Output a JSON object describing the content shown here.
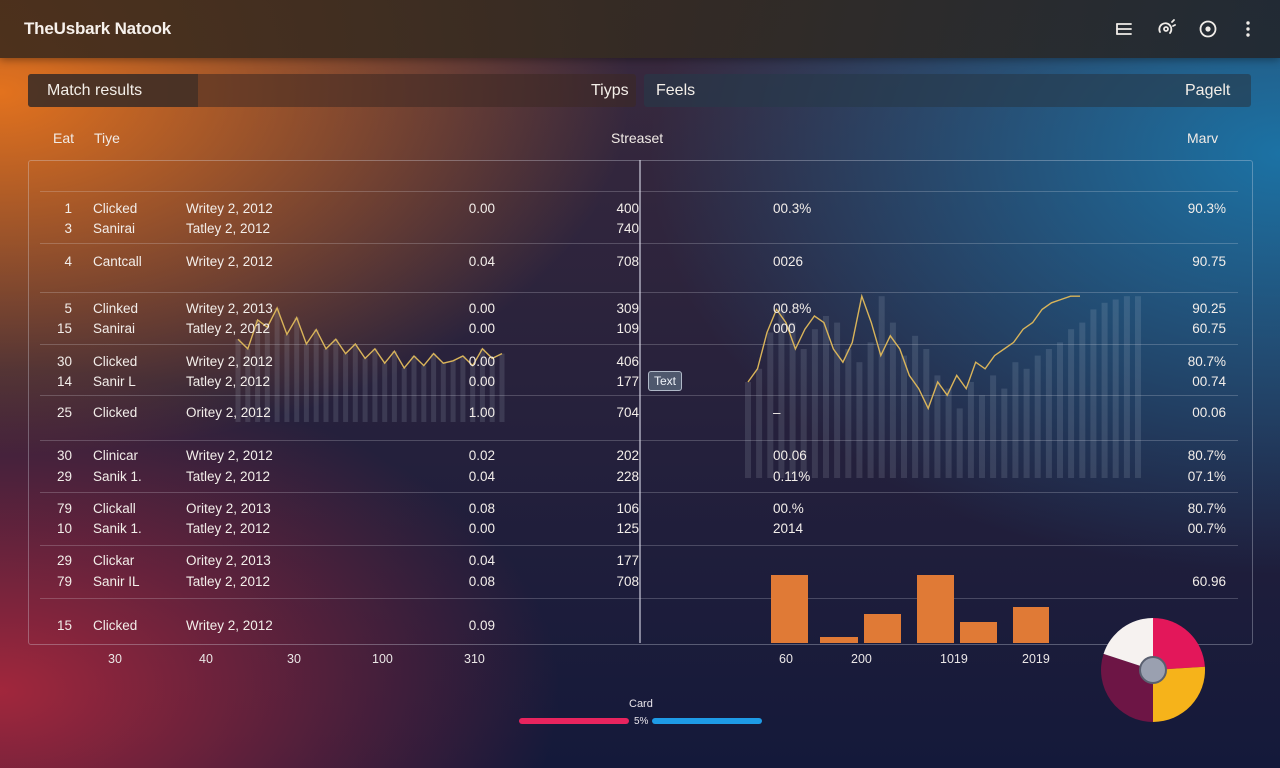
{
  "app": {
    "title": "TheUsbark Natook"
  },
  "toolbar_icons": [
    "list-icon",
    "settings-icon",
    "target-icon",
    "more-vertical-icon"
  ],
  "panel_left": {
    "tab_active": "Match results",
    "tab_right": "Tiyps"
  },
  "panel_right": {
    "tab_left": "Feels",
    "tab_right": "Pagelt"
  },
  "columns": {
    "id": "Eat",
    "type": "Tiye",
    "stream": "Streaset",
    "max": "Marv"
  },
  "rows": [
    {
      "id": "1",
      "type": "Clicked",
      "date": "Writey 2, 2012",
      "val": "0.00",
      "count": "400",
      "pct": "00.3%",
      "max": "90.3%"
    },
    {
      "id": "3",
      "type": "Sanirai",
      "date": "Tatley 2, 2012",
      "val": "",
      "count": "740",
      "pct": "",
      "max": ""
    },
    {
      "id": "4",
      "type": "Cantcall",
      "date": "Writey 2, 2012",
      "val": "0.04",
      "count": "708",
      "pct": "0026",
      "max": "90.75"
    },
    {
      "id": "5",
      "type": "Clinked",
      "date": "Writey 2, 2013",
      "val": "0.00",
      "count": "309",
      "pct": "00.8%",
      "max": "90.25"
    },
    {
      "id": "15",
      "type": "Sanirai",
      "date": "Tatley 2, 2012",
      "val": "0.00",
      "count": "109",
      "pct": "000",
      "max": "60.75"
    },
    {
      "id": "30",
      "type": "Clicked",
      "date": "Writey 2, 2012",
      "val": "0.00",
      "count": "406",
      "pct": "",
      "max": "80.7%"
    },
    {
      "id": "14",
      "type": "Sanir L",
      "date": "Tatley 2, 2012",
      "val": "0.00",
      "count": "177",
      "pct": "",
      "max": "00.74"
    },
    {
      "id": "25",
      "type": "Clicked",
      "date": "Oritey 2, 2012",
      "val": "1.00",
      "count": "704",
      "pct": "–",
      "max": "00.06"
    },
    {
      "id": "30",
      "type": "Clinicar",
      "date": "Writey 2, 2012",
      "val": "0.02",
      "count": "202",
      "pct": "00.06",
      "max": "80.7%"
    },
    {
      "id": "29",
      "type": "Sanik 1.",
      "date": "Tatley 2, 2012",
      "val": "0.04",
      "count": "228",
      "pct": "0.11%",
      "max": "07.1%"
    },
    {
      "id": "79",
      "type": "Clickall",
      "date": "Oritey 2, 2013",
      "val": "0.08",
      "count": "106",
      "pct": "00.%",
      "max": "80.7%"
    },
    {
      "id": "10",
      "type": "Sanik 1.",
      "date": "Tatley 2, 2012",
      "val": "0.00",
      "count": "125",
      "pct": "2014",
      "max": "00.7%"
    },
    {
      "id": "29",
      "type": "Clickar",
      "date": "Oritey 2, 2013",
      "val": "0.04",
      "count": "177",
      "pct": "",
      "max": ""
    },
    {
      "id": "79",
      "type": "Sanir IL",
      "date": "Tatley 2, 2012",
      "val": "0.08",
      "count": "708",
      "pct": "",
      "max": "60.96"
    },
    {
      "id": "15",
      "type": "Clicked",
      "date": "Writey 2, 2012",
      "val": "0.09",
      "count": "",
      "pct": "",
      "max": ""
    }
  ],
  "tooltip": "Text",
  "axis_left": [
    "30",
    "40",
    "30",
    "100",
    "310"
  ],
  "axis_right": [
    "60",
    "200",
    "1019",
    "2019"
  ],
  "legend": {
    "caption": "Card",
    "value": "5%"
  },
  "colors": {
    "line": "#d9b45a",
    "bars_orange": "#e07a36",
    "pill_pink": "#e8245e",
    "pill_blue": "#1e9be6",
    "donut": [
      "#e3175a",
      "#f6b31a",
      "#6d1545",
      "#f6f2f0"
    ]
  },
  "chart_data": [
    {
      "type": "line",
      "x": [
        1,
        2,
        3,
        4,
        5,
        6,
        7,
        8,
        9,
        10,
        11,
        12,
        13,
        14,
        15,
        16,
        17,
        18,
        19,
        20,
        21,
        22,
        23,
        24,
        25,
        26,
        27,
        28
      ],
      "values": [
        22,
        18,
        30,
        27,
        35,
        24,
        31,
        20,
        26,
        18,
        22,
        16,
        20,
        14,
        18,
        12,
        17,
        10,
        15,
        11,
        16,
        12,
        13,
        15,
        11,
        18,
        14,
        16
      ]
    },
    {
      "type": "line",
      "x": [
        1,
        2,
        3,
        4,
        5,
        6,
        7,
        8,
        9,
        10,
        11,
        12,
        13,
        14,
        15,
        16,
        17,
        18,
        19,
        20,
        21,
        22,
        23,
        24,
        25,
        26,
        27,
        28,
        29,
        30,
        31,
        32,
        33,
        34,
        35,
        36
      ],
      "values": [
        20,
        24,
        35,
        42,
        38,
        30,
        36,
        40,
        38,
        30,
        26,
        32,
        46,
        38,
        28,
        34,
        30,
        22,
        18,
        12,
        20,
        16,
        22,
        18,
        26,
        24,
        28,
        30,
        32,
        36,
        38,
        42,
        44,
        45,
        46,
        46
      ]
    },
    {
      "type": "bar",
      "categories": [
        "b1",
        "b2",
        "b3",
        "b4",
        "b5",
        "b6"
      ],
      "values": [
        68,
        6,
        29,
        68,
        21,
        36
      ],
      "ylim": [
        0,
        70
      ]
    },
    {
      "type": "pie",
      "categories": [
        "pink",
        "yellow",
        "plum",
        "white"
      ],
      "values": [
        24,
        26,
        30,
        20
      ]
    }
  ]
}
